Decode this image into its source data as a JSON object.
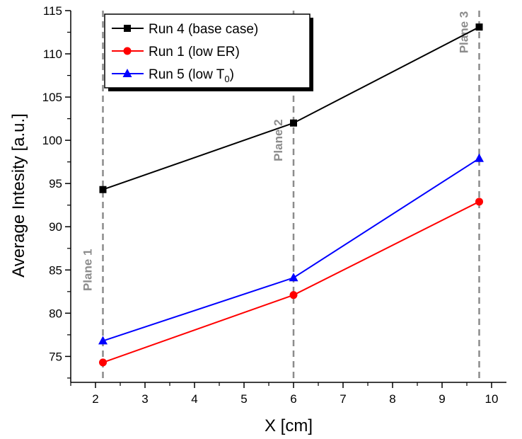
{
  "chart_data": {
    "type": "line",
    "xlabel": "X [cm]",
    "ylabel": "Average Intesity [a.u.]",
    "xlim": [
      1.5,
      10.3
    ],
    "ylim": [
      72,
      115
    ],
    "x_ticks": [
      "2",
      "3",
      "4",
      "5",
      "6",
      "7",
      "8",
      "9",
      "10"
    ],
    "y_ticks": [
      "75",
      "80",
      "85",
      "90",
      "95",
      "100",
      "105",
      "110",
      "115"
    ],
    "legend_position": "top-left",
    "series": [
      {
        "name": "Run 4 (base case)",
        "x": [
          2.15,
          6.0,
          9.75
        ],
        "y": [
          94.3,
          102.0,
          113.1
        ],
        "color": "#000000",
        "marker": "square"
      },
      {
        "name": "Run 1 (low ER)",
        "x": [
          2.15,
          6.0,
          9.75
        ],
        "y": [
          74.3,
          82.1,
          92.9
        ],
        "color": "#ff0000",
        "marker": "circle"
      },
      {
        "name": "Run 5 (low T0)",
        "x": [
          2.15,
          6.0,
          9.75
        ],
        "y": [
          76.8,
          84.1,
          97.9
        ],
        "color": "#0000ff",
        "marker": "triangle"
      }
    ],
    "legend_labels": [
      {
        "main": "Run 4 (base case)",
        "sub": ""
      },
      {
        "main": "Run 1 (low ER)",
        "sub": ""
      },
      {
        "main": "Run 5 (low T",
        "sub": "0",
        "after": ")"
      }
    ],
    "planes": [
      {
        "label": "Plane 1",
        "x": 2.15,
        "label_y": 85
      },
      {
        "label": "Plane 2",
        "x": 6.0,
        "label_y": 100
      },
      {
        "label": "Plane 3",
        "x": 9.75,
        "label_y": 112.5
      }
    ],
    "colors": {
      "plane_line": "#8c8c8c",
      "plane_label": "#8c8c8c",
      "axis": "#000000"
    }
  }
}
